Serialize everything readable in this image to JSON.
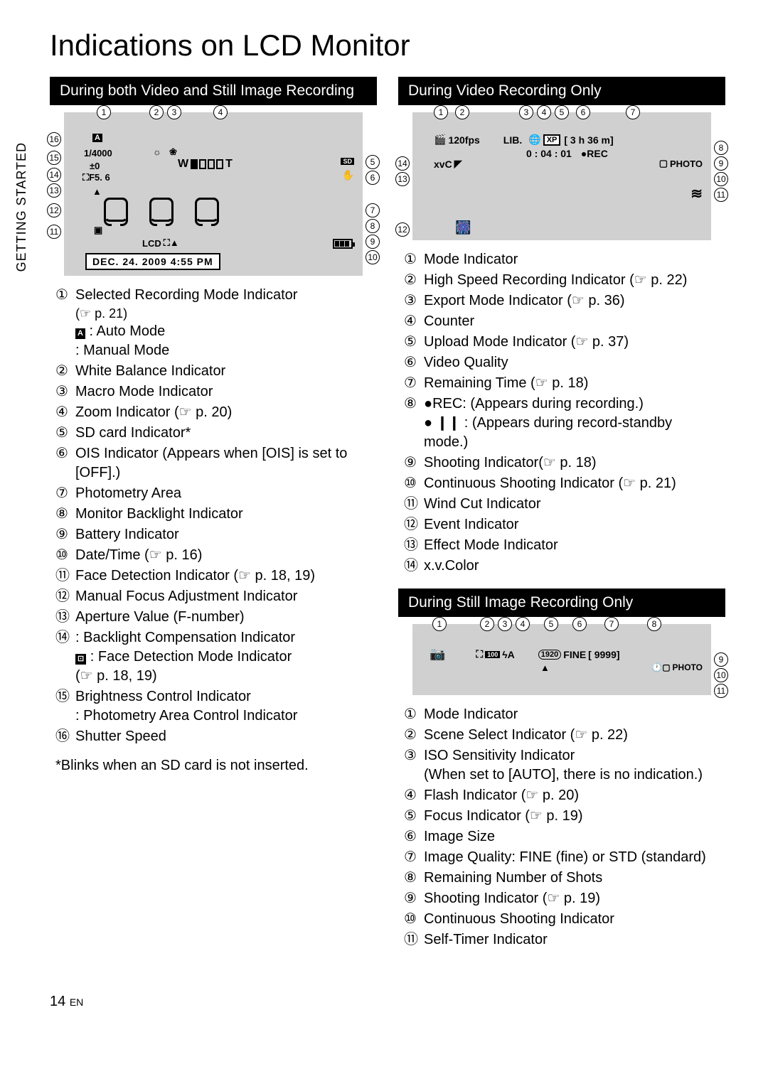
{
  "page": {
    "title": "Indications on LCD Monitor",
    "side_label": "GETTING STARTED",
    "page_number": "14",
    "page_lang": "EN"
  },
  "section1": {
    "header": "During both Video and Still Image Recording",
    "diagram": {
      "shutter": "1/4000",
      "ev": "±0",
      "aperture_icon": "⛶",
      "aperture": "F5. 6",
      "zoom_w": "W",
      "zoom_t": "T",
      "sd": "SD",
      "lcd": "LCD",
      "date": "DEC. 24. 2009   4:55 PM",
      "auto_icon": "A"
    },
    "items": [
      {
        "n": "①",
        "text": "Selected Recording Mode Indicator",
        "ref": "(☞ p. 21)",
        "subs": [
          {
            "pre": "",
            "text": ": Auto Mode",
            "icon": "A"
          },
          {
            "pre": "",
            "text": ": Manual Mode"
          }
        ]
      },
      {
        "n": "②",
        "text": "White Balance Indicator"
      },
      {
        "n": "③",
        "text": "Macro Mode Indicator"
      },
      {
        "n": "④",
        "text": "Zoom Indicator (☞ p. 20)"
      },
      {
        "n": "⑤",
        "text": "SD card Indicator*"
      },
      {
        "n": "⑥",
        "text": "OIS Indicator (Appears when [OIS] is set to [OFF].)"
      },
      {
        "n": "⑦",
        "text": "Photometry Area"
      },
      {
        "n": "⑧",
        "text": "Monitor Backlight Indicator"
      },
      {
        "n": "⑨",
        "text": "Battery Indicator"
      },
      {
        "n": "⑩",
        "text": "Date/Time (☞ p. 16)"
      },
      {
        "n": "⑪",
        "text": "Face Detection Indicator (☞ p. 18, 19)"
      },
      {
        "n": "⑫",
        "text": "Manual Focus Adjustment Indicator"
      },
      {
        "n": "⑬",
        "text": "Aperture Value (F-number)"
      },
      {
        "n": "⑭",
        "text": "    : Backlight Compensation Indicator",
        "subs": [
          {
            "pre": "",
            "text": ": Face Detection Mode Indicator",
            "icon": "⊡"
          },
          {
            "pre": "",
            "text": "(☞ p. 18, 19)"
          }
        ]
      },
      {
        "n": "⑮",
        "text": "Brightness Control Indicator",
        "subs": [
          {
            "pre": "",
            "text": ": Photometry Area Control Indicator"
          }
        ]
      },
      {
        "n": "⑯",
        "text": "Shutter Speed"
      }
    ],
    "footnote": "*Blinks when an SD card is not inserted."
  },
  "section2": {
    "header": "During Video Recording Only",
    "diagram": {
      "fps": "120fps",
      "lib": "LIB.",
      "xp": "XP",
      "remaining": "[ 3 h 36 m]",
      "counter": "0 : 04 : 01",
      "rec": "●REC",
      "xvc": "xvC",
      "photo": "PHOTO"
    },
    "items": [
      {
        "n": "①",
        "text": "Mode Indicator"
      },
      {
        "n": "②",
        "text": "High Speed Recording Indicator (☞ p. 22)"
      },
      {
        "n": "③",
        "text": "Export Mode Indicator (☞ p. 36)"
      },
      {
        "n": "④",
        "text": "Counter"
      },
      {
        "n": "⑤",
        "text": "Upload Mode Indicator (☞ p. 37)"
      },
      {
        "n": "⑥",
        "text": "Video Quality"
      },
      {
        "n": "⑦",
        "text": "Remaining Time (☞ p. 18)"
      },
      {
        "n": "⑧",
        "text": "●REC: (Appears during recording.)",
        "subs": [
          {
            "pre": "",
            "text": "● ❙❙ : (Appears during record-standby mode.)"
          }
        ]
      },
      {
        "n": "⑨",
        "text": "Shooting Indicator(☞ p. 18)"
      },
      {
        "n": "⑩",
        "text": "Continuous Shooting Indicator (☞ p. 21)"
      },
      {
        "n": "⑪",
        "text": "Wind Cut Indicator"
      },
      {
        "n": "⑫",
        "text": "Event Indicator"
      },
      {
        "n": "⑬",
        "text": "Effect Mode Indicator"
      },
      {
        "n": "⑭",
        "text": "x.v.Color"
      }
    ]
  },
  "section3": {
    "header": "During Still Image Recording Only",
    "diagram": {
      "iso": "100",
      "flash": "ϟA",
      "size": "1920",
      "quality": "FINE",
      "shots": "[ 9999]",
      "photo": "PHOTO"
    },
    "items": [
      {
        "n": "①",
        "text": "Mode Indicator"
      },
      {
        "n": "②",
        "text": "Scene Select Indicator (☞ p. 22)"
      },
      {
        "n": "③",
        "text": "ISO Sensitivity Indicator",
        "subs": [
          {
            "pre": "",
            "text": "(When set to [AUTO], there is no indication.)"
          }
        ]
      },
      {
        "n": "④",
        "text": "Flash Indicator (☞ p. 20)"
      },
      {
        "n": "⑤",
        "text": "Focus Indicator (☞ p. 19)"
      },
      {
        "n": "⑥",
        "text": "Image Size"
      },
      {
        "n": "⑦",
        "text": "Image Quality: FINE (ﬁne) or STD (standard)"
      },
      {
        "n": "⑧",
        "text": "Remaining Number of Shots"
      },
      {
        "n": "⑨",
        "text": "Shooting Indicator (☞ p. 19)"
      },
      {
        "n": "⑩",
        "text": "Continuous Shooting Indicator"
      },
      {
        "n": "⑪",
        "text": "Self-Timer Indicator"
      }
    ]
  }
}
